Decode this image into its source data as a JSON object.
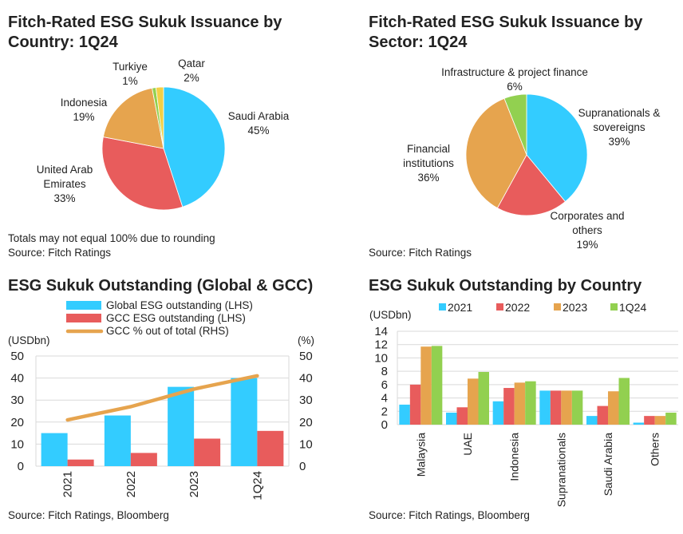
{
  "colors": {
    "cyan": "#33ccff",
    "red": "#e85c5c",
    "orange": "#e6a44e",
    "green": "#92d050",
    "yellow": "#f2d046",
    "line": "#e6a44e",
    "grid": "#d9d9d9"
  },
  "chart_data": [
    {
      "type": "pie",
      "title": "Fitch-Rated ESG Sukuk Issuance by Country: 1Q24",
      "notes": [
        "Totals may not equal 100% due to rounding",
        "Source: Fitch Ratings"
      ],
      "slices": [
        {
          "label": "Saudi Arabia",
          "value": 45,
          "display": "45%",
          "color": "#33ccff"
        },
        {
          "label": "United Arab Emirates",
          "value": 33,
          "display": "33%",
          "color": "#e85c5c"
        },
        {
          "label": "Indonesia",
          "value": 19,
          "display": "19%",
          "color": "#e6a44e"
        },
        {
          "label": "Turkiye",
          "value": 1,
          "display": "1%",
          "color": "#92d050"
        },
        {
          "label": "Qatar",
          "value": 2,
          "display": "2%",
          "color": "#f2d046"
        }
      ]
    },
    {
      "type": "pie",
      "title": "Fitch-Rated ESG Sukuk Issuance by Sector: 1Q24",
      "notes": [
        "Source: Fitch Ratings"
      ],
      "slices": [
        {
          "label": "Supranationals & sovereigns",
          "value": 39,
          "display": "39%",
          "color": "#33ccff"
        },
        {
          "label": "Corporates and others",
          "value": 19,
          "display": "19%",
          "color": "#e85c5c"
        },
        {
          "label": "Financial institutions",
          "value": 36,
          "display": "36%",
          "color": "#e6a44e"
        },
        {
          "label": "Infrastructure & project finance",
          "value": 6,
          "display": "6%",
          "color": "#92d050"
        }
      ]
    },
    {
      "type": "bar",
      "title": "ESG Sukuk Outstanding (Global & GCC)",
      "notes": [
        "Source: Fitch Ratings, Bloomberg"
      ],
      "categories": [
        "2021",
        "2022",
        "2023",
        "1Q24"
      ],
      "ylabel": "(USDbn)",
      "y2label": "(%)",
      "ylim": [
        0,
        50
      ],
      "y2lim": [
        0,
        50
      ],
      "yticks": [
        "0",
        "10",
        "20",
        "30",
        "40",
        "50"
      ],
      "y2ticks": [
        "0",
        "10",
        "20",
        "30",
        "40",
        "50"
      ],
      "grid": true,
      "legend": "top",
      "series": [
        {
          "name": "Global ESG outstanding (LHS)",
          "type": "bar",
          "axis": "left",
          "values": [
            15,
            23,
            36,
            40
          ],
          "color": "#33ccff"
        },
        {
          "name": "GCC ESG outstanding (LHS)",
          "type": "bar",
          "axis": "left",
          "values": [
            3,
            6,
            12.5,
            16
          ],
          "color": "#e85c5c"
        },
        {
          "name": "GCC % out of total (RHS)",
          "type": "line",
          "axis": "right",
          "values": [
            21,
            27,
            35,
            41
          ],
          "color": "#e6a44e"
        }
      ]
    },
    {
      "type": "bar",
      "title": "ESG Sukuk Outstanding by Country",
      "notes": [
        "Source: Fitch Ratings, Bloomberg"
      ],
      "categories": [
        "Malaysia",
        "UAE",
        "Indonesia",
        "Supranationals",
        "Saudi Arabia",
        "Others"
      ],
      "ylabel": "(USDbn)",
      "ylim": [
        0,
        14
      ],
      "yticks": [
        "0",
        "2",
        "4",
        "6",
        "8",
        "10",
        "12",
        "14"
      ],
      "grid": true,
      "legend": "top",
      "series": [
        {
          "name": "2021",
          "values": [
            3.0,
            1.8,
            3.5,
            5.1,
            1.3,
            0.3
          ],
          "color": "#33ccff"
        },
        {
          "name": "2022",
          "values": [
            6.0,
            2.6,
            5.5,
            5.1,
            2.8,
            1.3
          ],
          "color": "#e85c5c"
        },
        {
          "name": "2023",
          "values": [
            11.7,
            6.9,
            6.3,
            5.1,
            5.0,
            1.3
          ],
          "color": "#e6a44e"
        },
        {
          "name": "1Q24",
          "values": [
            11.8,
            7.9,
            6.5,
            5.1,
            7.0,
            1.8
          ],
          "color": "#92d050"
        }
      ]
    }
  ]
}
